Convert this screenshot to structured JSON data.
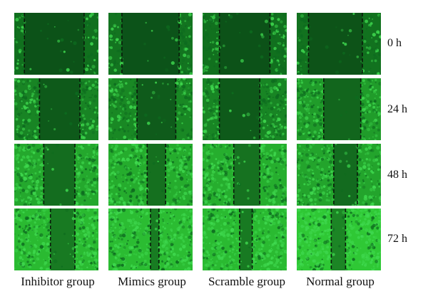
{
  "rows": [
    "0 h",
    "24 h",
    "48 h",
    "72 h"
  ],
  "columns": [
    "Inhibitor group",
    "Mimics group",
    "Scramble group",
    "Normal group"
  ],
  "colors": {
    "cell_dark": "#0d6b1f",
    "cell_bright": "#3fd94f",
    "gap": "#0b4a17",
    "boundary_line": "#0a1a0a"
  }
}
